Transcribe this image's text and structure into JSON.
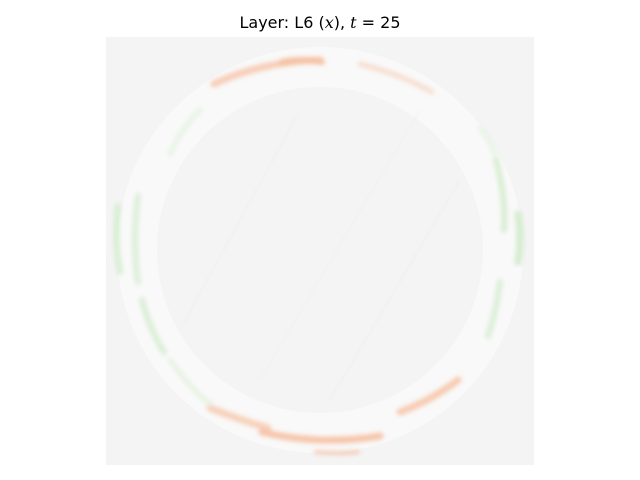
{
  "title": {
    "prefix": "Layer: L6 (",
    "var": "x",
    "middle": "), ",
    "t_var": "t",
    "eq": " = 25"
  },
  "colors": {
    "background": "#f4f4f4",
    "positive": "#f6c2a5",
    "negative": "#cfeacb",
    "ring_faint": "#ececec"
  }
}
